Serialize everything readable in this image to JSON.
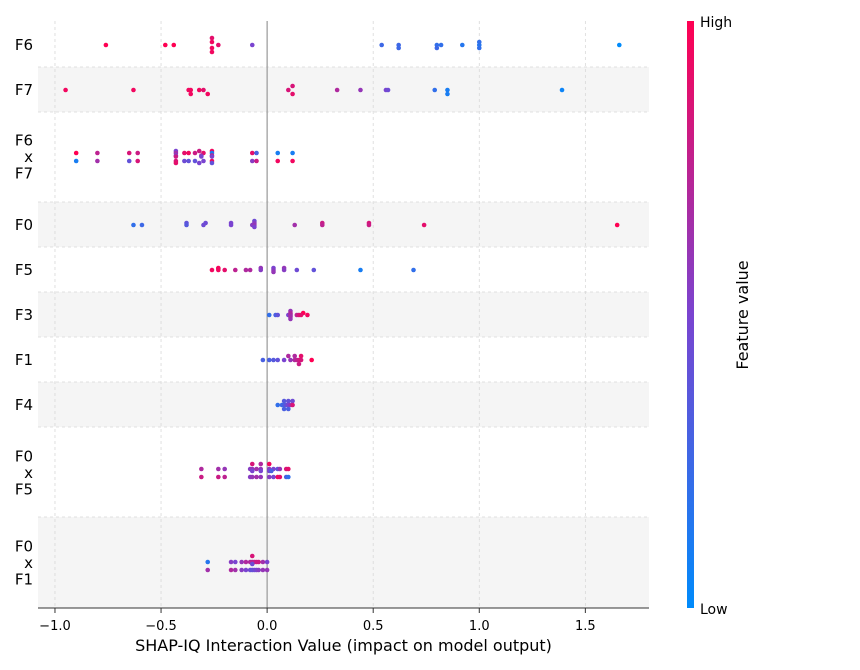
{
  "chart_data": {
    "type": "scatter",
    "xlabel": "SHAP-IQ Interaction Value (impact on model output)",
    "xlim": [
      -1.08,
      1.8
    ],
    "x_ticks": [
      -1.0,
      -0.5,
      0.0,
      0.5,
      1.0,
      1.5
    ],
    "x_tick_labels": [
      "−1.0",
      "−0.5",
      "0.0",
      "0.5",
      "1.0",
      "1.5"
    ],
    "grid": true,
    "colorbar": {
      "label": "Feature value",
      "high": "High",
      "low": "Low",
      "low_color": "#008bfb",
      "high_color": "#ff0052"
    },
    "rows": [
      {
        "label": [
          "F6"
        ],
        "shaded": false,
        "points": [
          [
            -0.26,
            7,
            0.95
          ],
          [
            -0.26,
            3,
            0.95
          ],
          [
            -0.26,
            -3,
            0.95
          ],
          [
            -0.26,
            -7,
            0.9
          ],
          [
            -0.76,
            0,
            1.0
          ],
          [
            -0.48,
            0,
            1.0
          ],
          [
            -0.44,
            0,
            1.0
          ],
          [
            -0.23,
            0,
            0.9
          ],
          [
            -0.07,
            0,
            0.5
          ],
          [
            0.54,
            0,
            0.25
          ],
          [
            0.62,
            0,
            0.25
          ],
          [
            0.62,
            3,
            0.25
          ],
          [
            0.8,
            0,
            0.2
          ],
          [
            0.82,
            0,
            0.2
          ],
          [
            0.8,
            3,
            0.25
          ],
          [
            0.92,
            0,
            0.15
          ],
          [
            1.0,
            0,
            0.15
          ],
          [
            1.0,
            3,
            0.2
          ],
          [
            1.0,
            -3,
            0.2
          ],
          [
            1.66,
            0,
            0.0
          ]
        ]
      },
      {
        "label": [
          "F7"
        ],
        "shaded": true,
        "points": [
          [
            -0.36,
            4,
            0.95
          ],
          [
            -0.28,
            4,
            0.95
          ],
          [
            0.12,
            4,
            0.9
          ],
          [
            -0.95,
            0,
            0.95
          ],
          [
            -0.63,
            0,
            0.95
          ],
          [
            -0.37,
            0,
            0.95
          ],
          [
            -0.36,
            0,
            0.95
          ],
          [
            -0.32,
            0,
            0.95
          ],
          [
            -0.3,
            0,
            0.9
          ],
          [
            0.1,
            0,
            0.85
          ],
          [
            0.33,
            0,
            0.7
          ],
          [
            0.44,
            0,
            0.6
          ],
          [
            0.56,
            0,
            0.5
          ],
          [
            0.57,
            0,
            0.45
          ],
          [
            0.79,
            0,
            0.2
          ],
          [
            0.85,
            0,
            0.1
          ],
          [
            1.39,
            0,
            0.05
          ],
          [
            0.85,
            4,
            0.1
          ],
          [
            0.12,
            -4,
            0.85
          ]
        ]
      },
      {
        "label": [
          "F6",
          "x",
          "F7"
        ],
        "shaded": false,
        "points": [
          [
            -0.43,
            -6,
            0.5
          ],
          [
            -0.32,
            -6,
            0.8
          ],
          [
            -0.26,
            -6,
            0.95
          ],
          [
            -0.9,
            -4,
            1.0
          ],
          [
            -0.8,
            -4,
            0.75
          ],
          [
            -0.65,
            -4,
            0.85
          ],
          [
            -0.61,
            -4,
            0.8
          ],
          [
            -0.43,
            -4,
            0.65
          ],
          [
            -0.39,
            -4,
            0.9
          ],
          [
            -0.37,
            -4,
            0.95
          ],
          [
            -0.34,
            -4,
            0.8
          ],
          [
            -0.3,
            -4,
            0.9
          ],
          [
            -0.26,
            -4,
            0.1
          ],
          [
            -0.07,
            -4,
            0.9
          ],
          [
            -0.05,
            -4,
            0.3
          ],
          [
            0.05,
            -4,
            0.1
          ],
          [
            0.12,
            -4,
            0.1
          ],
          [
            -0.43,
            -1.5,
            0.5
          ],
          [
            -0.31,
            -1.5,
            0.7
          ],
          [
            -0.26,
            -1.5,
            0.8
          ],
          [
            -0.43,
            -0.5,
            0.8
          ],
          [
            -0.31,
            -0.5,
            0.5
          ],
          [
            -0.26,
            -0.5,
            0.5
          ],
          [
            -0.9,
            4,
            0.1
          ],
          [
            -0.8,
            4,
            0.65
          ],
          [
            -0.65,
            4,
            0.4
          ],
          [
            -0.61,
            4,
            0.85
          ],
          [
            -0.43,
            4,
            0.85
          ],
          [
            -0.39,
            4,
            0.45
          ],
          [
            -0.37,
            4,
            0.4
          ],
          [
            -0.34,
            4,
            0.4
          ],
          [
            -0.3,
            4,
            0.5
          ],
          [
            -0.26,
            4,
            0.95
          ],
          [
            -0.07,
            4,
            0.55
          ],
          [
            -0.05,
            4,
            0.8
          ],
          [
            0.05,
            4,
            0.95
          ],
          [
            0.12,
            4,
            0.95
          ],
          [
            -0.43,
            6,
            0.9
          ],
          [
            -0.32,
            6,
            0.5
          ],
          [
            -0.26,
            6,
            0.4
          ]
        ]
      },
      {
        "label": [
          "F0"
        ],
        "shaded": true,
        "points": [
          [
            -0.06,
            -4,
            0.45
          ],
          [
            -0.38,
            -2,
            0.4
          ],
          [
            -0.29,
            -2,
            0.45
          ],
          [
            -0.17,
            -2,
            0.5
          ],
          [
            -0.06,
            -2,
            0.55
          ],
          [
            0.26,
            -2,
            0.8
          ],
          [
            0.48,
            -2,
            0.85
          ],
          [
            -0.63,
            0,
            0.2
          ],
          [
            -0.59,
            0,
            0.25
          ],
          [
            -0.38,
            0,
            0.35
          ],
          [
            -0.3,
            0,
            0.45
          ],
          [
            -0.17,
            0,
            0.5
          ],
          [
            -0.07,
            0,
            0.55
          ],
          [
            -0.06,
            0,
            0.6
          ],
          [
            0.13,
            0,
            0.65
          ],
          [
            0.26,
            0,
            0.75
          ],
          [
            0.48,
            0,
            0.8
          ],
          [
            0.74,
            0,
            0.9
          ],
          [
            1.65,
            0,
            1.0
          ],
          [
            -0.06,
            2,
            0.5
          ]
        ]
      },
      {
        "label": [
          "F5"
        ],
        "shaded": false,
        "points": [
          [
            -0.23,
            -2,
            1.0
          ],
          [
            -0.03,
            -2,
            0.6
          ],
          [
            0.03,
            -2,
            0.5
          ],
          [
            0.08,
            -2,
            0.6
          ],
          [
            -0.23,
            -1.5,
            0.95
          ],
          [
            -0.26,
            0,
            0.95
          ],
          [
            -0.23,
            0,
            0.95
          ],
          [
            -0.2,
            0,
            0.9
          ],
          [
            -0.15,
            0,
            0.75
          ],
          [
            -0.1,
            0,
            0.7
          ],
          [
            -0.08,
            0,
            0.7
          ],
          [
            -0.03,
            0,
            0.55
          ],
          [
            0.03,
            0,
            0.55
          ],
          [
            0.08,
            0,
            0.55
          ],
          [
            0.14,
            0,
            0.45
          ],
          [
            0.22,
            0,
            0.4
          ],
          [
            0.44,
            0,
            0.1
          ],
          [
            0.69,
            0,
            0.2
          ],
          [
            0.03,
            2,
            0.6
          ]
        ]
      },
      {
        "label": [
          "F3"
        ],
        "shaded": true,
        "points": [
          [
            0.11,
            -4,
            0.6
          ],
          [
            0.11,
            -2,
            0.7
          ],
          [
            0.17,
            -2,
            1.0
          ],
          [
            0.01,
            0,
            0.2
          ],
          [
            0.04,
            0,
            0.3
          ],
          [
            0.05,
            0,
            0.4
          ],
          [
            0.1,
            0,
            0.5
          ],
          [
            0.11,
            0,
            0.6
          ],
          [
            0.14,
            0,
            0.75
          ],
          [
            0.15,
            0,
            0.85
          ],
          [
            0.16,
            0,
            0.9
          ],
          [
            0.19,
            0,
            0.95
          ],
          [
            0.11,
            2,
            0.6
          ],
          [
            0.11,
            4,
            0.6
          ],
          [
            0.11,
            -1,
            0.7
          ],
          [
            0.11,
            1,
            0.65
          ]
        ]
      },
      {
        "label": [
          "F1"
        ],
        "shaded": false,
        "points": [
          [
            0.1,
            -4,
            0.7
          ],
          [
            0.13,
            -4,
            0.7
          ],
          [
            0.16,
            -4,
            0.9
          ],
          [
            -0.02,
            0,
            0.3
          ],
          [
            0.01,
            0,
            0.3
          ],
          [
            0.03,
            0,
            0.35
          ],
          [
            0.05,
            0,
            0.4
          ],
          [
            0.08,
            0,
            0.5
          ],
          [
            0.11,
            0,
            0.6
          ],
          [
            0.13,
            0,
            0.7
          ],
          [
            0.14,
            0,
            0.75
          ],
          [
            0.15,
            0,
            0.8
          ],
          [
            0.16,
            0,
            0.85
          ],
          [
            0.21,
            0,
            1.0
          ],
          [
            0.15,
            4,
            0.8
          ]
        ]
      },
      {
        "label": [
          "F4"
        ],
        "shaded": true,
        "points": [
          [
            0.08,
            -4,
            0.35
          ],
          [
            0.1,
            -4,
            0.4
          ],
          [
            0.12,
            -4,
            0.45
          ],
          [
            0.05,
            0,
            0.2
          ],
          [
            0.07,
            0,
            0.25
          ],
          [
            0.08,
            0,
            0.3
          ],
          [
            0.09,
            0,
            0.4
          ],
          [
            0.1,
            0,
            0.5
          ],
          [
            0.11,
            0,
            0.6
          ],
          [
            0.12,
            0,
            0.85
          ],
          [
            0.08,
            4,
            0.3
          ],
          [
            0.1,
            4,
            0.3
          ]
        ]
      },
      {
        "label": [
          "F0",
          "x",
          "F5"
        ],
        "shaded": false,
        "points": [
          [
            -0.07,
            -9,
            0.85
          ],
          [
            -0.03,
            -9,
            0.7
          ],
          [
            0.01,
            -9,
            0.95
          ],
          [
            -0.31,
            -4,
            0.7
          ],
          [
            -0.23,
            -4,
            0.65
          ],
          [
            -0.2,
            -4,
            0.6
          ],
          [
            -0.08,
            -4,
            0.55
          ],
          [
            -0.07,
            -4,
            0.6
          ],
          [
            -0.05,
            -4,
            0.65
          ],
          [
            -0.03,
            -4,
            0.6
          ],
          [
            0.01,
            -4,
            0.55
          ],
          [
            0.03,
            -4,
            0.5
          ],
          [
            0.05,
            -4,
            0.4
          ],
          [
            0.06,
            -4,
            0.6
          ],
          [
            0.09,
            -4,
            0.85
          ],
          [
            0.1,
            -4,
            0.9
          ],
          [
            -0.07,
            -2,
            0.5
          ],
          [
            -0.03,
            -2,
            0.5
          ],
          [
            0.01,
            -2,
            0.5
          ],
          [
            0.02,
            -2,
            0.3
          ],
          [
            -0.31,
            4,
            0.8
          ],
          [
            -0.23,
            4,
            0.8
          ],
          [
            -0.2,
            4,
            0.75
          ],
          [
            -0.08,
            4,
            0.55
          ],
          [
            -0.07,
            4,
            0.6
          ],
          [
            -0.05,
            4,
            0.65
          ],
          [
            -0.03,
            4,
            0.6
          ],
          [
            0.01,
            4,
            0.55
          ],
          [
            0.03,
            4,
            0.5
          ],
          [
            0.05,
            4,
            0.95
          ],
          [
            0.06,
            4,
            0.9
          ],
          [
            0.09,
            4,
            0.3
          ],
          [
            0.1,
            4,
            0.2
          ]
        ]
      },
      {
        "label": [
          "F0",
          "x",
          "F1"
        ],
        "shaded": true,
        "points": [
          [
            -0.07,
            -7,
            0.85
          ],
          [
            -0.28,
            -1,
            0.15
          ],
          [
            -0.17,
            -1,
            0.55
          ],
          [
            -0.15,
            -1,
            0.5
          ],
          [
            -0.12,
            -1,
            0.6
          ],
          [
            -0.1,
            -1,
            0.7
          ],
          [
            -0.08,
            -1,
            0.7
          ],
          [
            -0.07,
            -1,
            0.75
          ],
          [
            -0.06,
            -1,
            0.75
          ],
          [
            -0.05,
            -1,
            0.8
          ],
          [
            -0.04,
            -1,
            0.8
          ],
          [
            -0.02,
            -1,
            0.65
          ],
          [
            0.0,
            -1,
            0.5
          ],
          [
            -0.07,
            1,
            0.45
          ],
          [
            -0.28,
            7,
            0.65
          ],
          [
            -0.17,
            7,
            0.7
          ],
          [
            -0.15,
            7,
            0.65
          ],
          [
            -0.12,
            7,
            0.55
          ],
          [
            -0.1,
            7,
            0.5
          ],
          [
            -0.08,
            7,
            0.45
          ],
          [
            -0.07,
            7,
            0.4
          ],
          [
            -0.06,
            7,
            0.45
          ],
          [
            -0.05,
            7,
            0.5
          ],
          [
            -0.04,
            7,
            0.55
          ],
          [
            -0.02,
            7,
            0.6
          ],
          [
            0.0,
            7,
            0.6
          ]
        ]
      }
    ]
  }
}
